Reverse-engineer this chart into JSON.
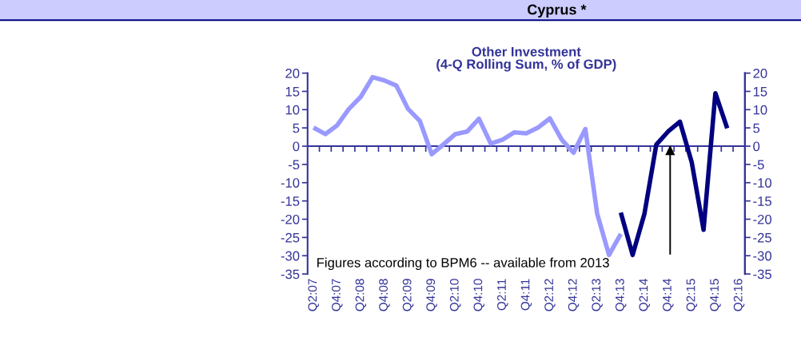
{
  "chart_data": {
    "type": "line",
    "title": "Cyprus *",
    "subtitle": "Other Investment\n(4-Q Rolling Sum, % of GDP)",
    "categories": [
      "Q2:07",
      null,
      "Q4:07",
      null,
      "Q2:08",
      null,
      "Q4:08",
      null,
      "Q2:09",
      null,
      "Q4:09",
      null,
      "Q2:10",
      null,
      "Q4:10",
      null,
      "Q2:11",
      null,
      "Q4:11",
      null,
      "Q2:12",
      null,
      "Q4:12",
      null,
      "Q2:13",
      null,
      "Q4:13",
      null,
      "Q2:14",
      null,
      "Q4:14",
      null,
      "Q2:15",
      null,
      "Q4:15",
      null,
      "Q2:16"
    ],
    "series": [
      {
        "color": "#9999ff",
        "values": [
          5.1,
          3.3,
          5.7,
          10.2,
          13.5,
          18.9,
          18.0,
          16.6,
          10.2,
          6.9,
          -2.2,
          0.5,
          3.3,
          4.0,
          7.5,
          0.7,
          1.8,
          3.8,
          3.5,
          5.1,
          7.6,
          1.8,
          -1.8,
          4.7,
          -18.5,
          -29.8,
          -24.0,
          null,
          null,
          null,
          null,
          null,
          null,
          null,
          null,
          null,
          null
        ]
      },
      {
        "color": "#000080",
        "values": [
          null,
          null,
          null,
          null,
          null,
          null,
          null,
          null,
          null,
          null,
          null,
          null,
          null,
          null,
          null,
          null,
          null,
          null,
          null,
          null,
          null,
          null,
          null,
          null,
          null,
          null,
          -18.2,
          -29.8,
          -18.5,
          0.4,
          4.0,
          6.7,
          -4.4,
          -22.9,
          14.5,
          4.9,
          null
        ]
      }
    ],
    "ylim": [
      -35,
      20
    ],
    "yticks": [
      -35,
      -30,
      -25,
      -20,
      -15,
      -10,
      -5,
      0,
      5,
      10,
      15,
      20
    ],
    "y2lim": [
      -35,
      20
    ],
    "y2ticks": [
      -35,
      -30,
      -25,
      -20,
      -15,
      -10,
      -5,
      0,
      5,
      10,
      15,
      20
    ],
    "annotations": [
      "Figures according to BPM6 -- available from 2013"
    ],
    "ref_lines": [
      {
        "axis": "y",
        "value": 0,
        "color": "#333399"
      }
    ],
    "grid": false,
    "marker": "none",
    "line_style": "solid"
  }
}
